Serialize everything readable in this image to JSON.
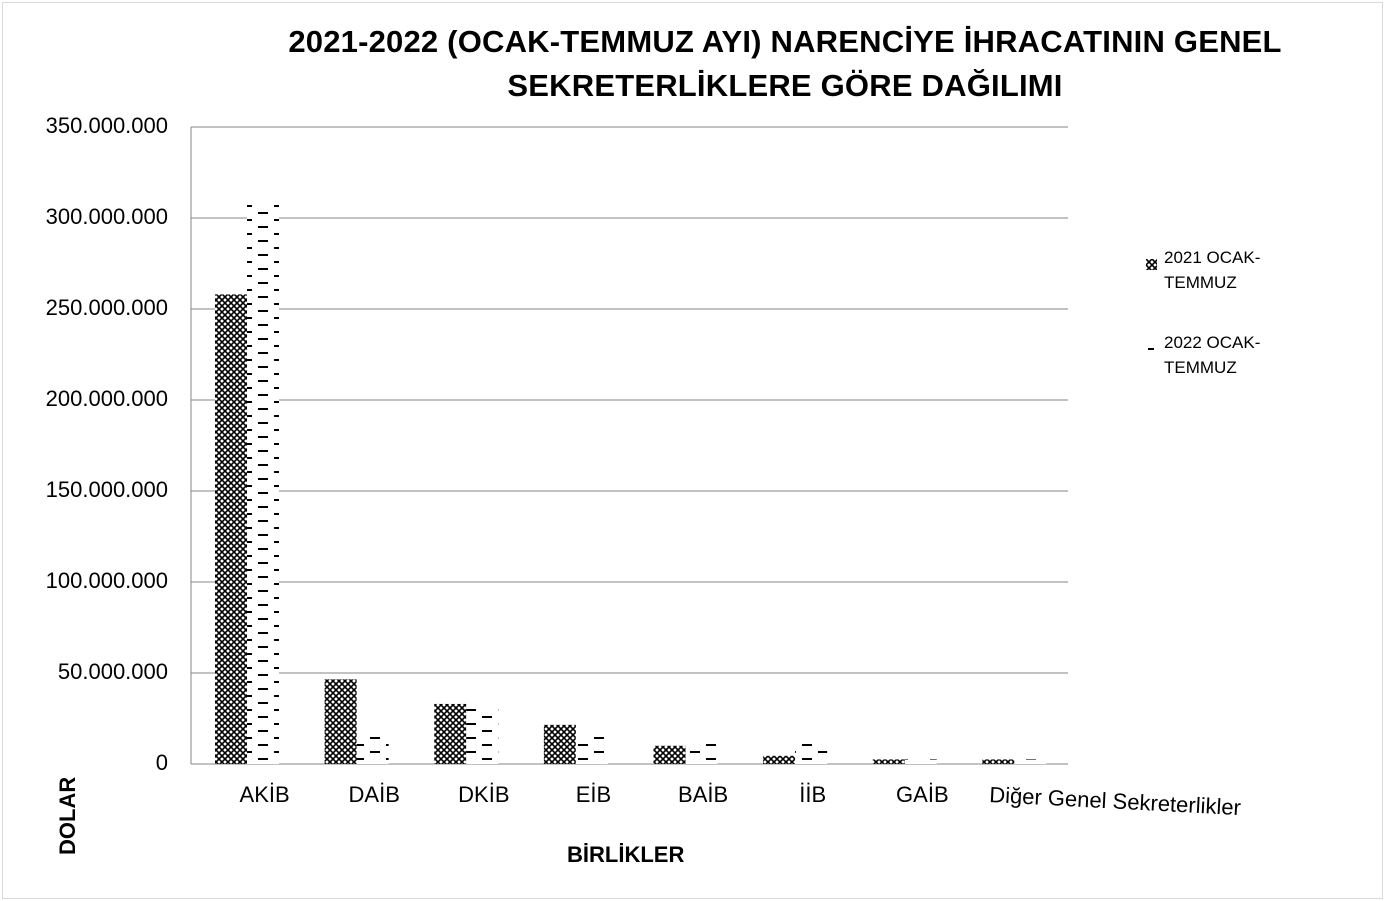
{
  "chart_data": {
    "type": "bar",
    "title_lines": [
      "2021-2022 (OCAK-TEMMUZ AYI) NARENCİYE İHRACATININ GENEL",
      "SEKRETERLİKLERE  GÖRE DAĞILIMI"
    ],
    "xlabel": "BİRLİKLER",
    "ylabel": "DOLAR",
    "categories": [
      "AKİB",
      "DAİB",
      "DKİB",
      "EİB",
      "BAİB",
      "İİB",
      "GAİB",
      "Diğer Genel Sekreterlikler"
    ],
    "series": [
      {
        "name": "2021 OCAK-TEMMUZ",
        "pattern": "crosshatch",
        "values": [
          258000000,
          46500000,
          33000000,
          21500000,
          10000000,
          4500000,
          2500000,
          2500000
        ]
      },
      {
        "name": "2022 OCAK-TEMMUZ",
        "pattern": "dashes",
        "values": [
          308000000,
          15000000,
          32500000,
          15000000,
          11000000,
          11000000,
          2500000,
          2500000
        ]
      }
    ],
    "ylim": [
      0,
      350000000
    ],
    "yticks": [
      0,
      50000000,
      100000000,
      150000000,
      200000000,
      250000000,
      300000000,
      350000000
    ],
    "ytick_labels": [
      "0",
      "50.000.000",
      "100.000.000",
      "150.000.000",
      "200.000.000",
      "250.000.000",
      "300.000.000",
      "350.000.000"
    ],
    "grid": true,
    "legend_position": "right",
    "colors": {
      "bar_ink": "#000000",
      "gridline": "#868686",
      "background": "#ffffff"
    }
  }
}
